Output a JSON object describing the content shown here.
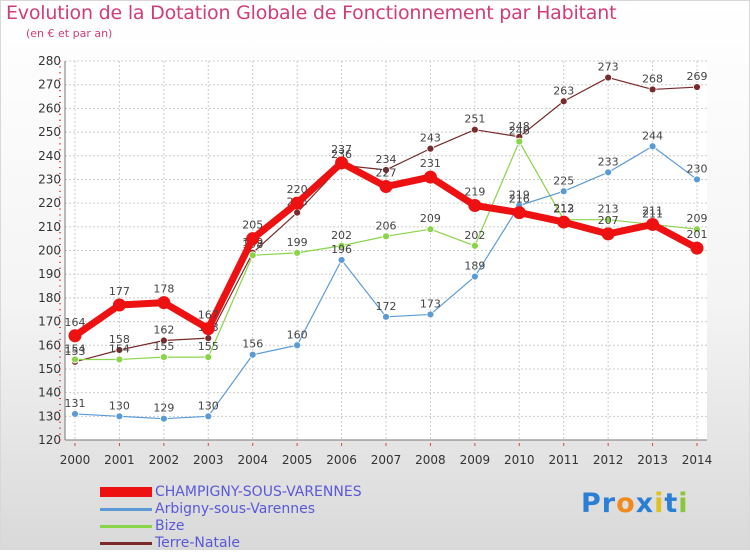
{
  "title": "Evolution de la Dotation Globale de Fonctionnement par Habitant",
  "subtitle": "(en € et par an)",
  "colors": {
    "title": "#d23c7a",
    "grid": "#cccccc",
    "axis_text": "#333333",
    "legend_text": "#5959d8",
    "tick_marks": "#e04040"
  },
  "chart_data": {
    "type": "line",
    "title": "Evolution de la Dotation Globale de Fonctionnement par Habitant",
    "subtitle": "(en € et par an)",
    "categories": [
      "2000",
      "2001",
      "2002",
      "2003",
      "2004",
      "2005",
      "2006",
      "2007",
      "2008",
      "2009",
      "2010",
      "2011",
      "2012",
      "2013",
      "2014"
    ],
    "ylim": [
      120,
      280
    ],
    "yticks": [
      120,
      130,
      140,
      150,
      160,
      170,
      180,
      190,
      200,
      210,
      220,
      230,
      240,
      250,
      260,
      270,
      280
    ],
    "grid": true,
    "series": [
      {
        "name": "Terre-Natale",
        "color": "#7a2a2a",
        "values": [
          153,
          158,
          162,
          163,
          199,
          216,
          236,
          234,
          243,
          251,
          248,
          263,
          273,
          268,
          269
        ]
      },
      {
        "name": "Bize",
        "color": "#8ad44a",
        "values": [
          154,
          154,
          155,
          155,
          198,
          199,
          202,
          206,
          209,
          202,
          246,
          213,
          213,
          211,
          209
        ]
      },
      {
        "name": "Arbigny-sous-Varennes",
        "color": "#5b9bd5",
        "values": [
          131,
          130,
          129,
          130,
          156,
          160,
          196,
          172,
          173,
          189,
          219,
          225,
          233,
          244,
          230
        ]
      },
      {
        "name": "CHAMPIGNY-SOUS-VARENNES",
        "color": "#ee1111",
        "values": [
          164,
          177,
          178,
          167,
          205,
          220,
          237,
          227,
          231,
          219,
          216,
          212,
          207,
          211,
          201
        ]
      }
    ]
  },
  "legend": [
    {
      "label": "CHAMPIGNY-SOUS-VARENNES",
      "color": "#ee1111"
    },
    {
      "label": "Arbigny-sous-Varennes",
      "color": "#5b9bd5"
    },
    {
      "label": "Bize",
      "color": "#8ad44a"
    },
    {
      "label": "Terre-Natale",
      "color": "#7a2a2a"
    }
  ],
  "logo": {
    "letters": [
      "P",
      "r",
      "o",
      "x",
      "i",
      "t",
      "i"
    ],
    "colors": [
      "#2a7fd4",
      "#2a7fd4",
      "#f08a1c",
      "#2a7fd4",
      "#e0c020",
      "#2a7fd4",
      "#8ac63a"
    ]
  }
}
